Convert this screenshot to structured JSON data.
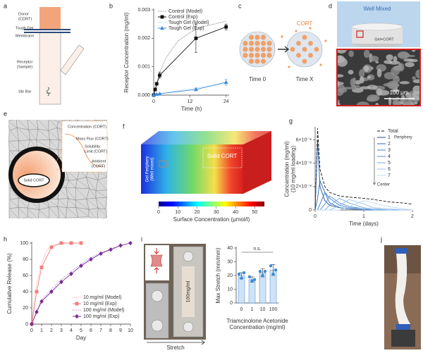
{
  "panel_labels": [
    "a",
    "b",
    "c",
    "d",
    "e",
    "f",
    "g",
    "h",
    "i",
    "j"
  ],
  "panel_a": {
    "donor": [
      "Donor",
      "(CORT)"
    ],
    "membrane": [
      "Tough Gel",
      "Membrane"
    ],
    "receptor": [
      "Receptor",
      "(Sample)"
    ],
    "stir_bar": "Stir Bar"
  },
  "panel_c": {
    "cort": "CORT",
    "time_0": "Time 0",
    "time_x": "Time X"
  },
  "panel_d": {
    "well": "Well Mixed",
    "gel": "Gel+CORT",
    "scale": "100 μm"
  },
  "panel_e": {
    "concentration": "Concentration (CORT)",
    "mass_flux": "Mass Flux (CORT)",
    "solubility": [
      "Solubility",
      "Limit (CORT)"
    ],
    "ambient": [
      "Ambient",
      "(CORT)"
    ],
    "solid": "Solid CORT"
  },
  "panel_f": {
    "periphery": [
      "Gel Periphery",
      "(Well mixed)"
    ],
    "solid": "Solid CORT",
    "colorbar_lim": [
      0,
      55
    ],
    "colorbar_ticks": [
      0,
      10,
      20,
      30,
      40,
      50
    ],
    "colorbar_label": "Surface Concentration (μmol/l)"
  },
  "panel_i": {
    "sample": "100mg/ml",
    "stretch": "Stretch"
  },
  "chart_data": [
    {
      "type": "line",
      "x_label": "Time (h)",
      "y_label": "Receptor Concentration (mg/ml)",
      "xlim": [
        0,
        25
      ],
      "xticks": [
        0,
        12,
        24
      ],
      "ylim": [
        0,
        0.003
      ],
      "yticks": [
        {
          "value": 0,
          "label": "0.000"
        },
        0.001,
        0.002,
        0.003
      ],
      "legend": "upper left",
      "series": [
        {
          "name": "Control (Model)",
          "color": "#7a7a7a",
          "style": "dotted",
          "x": [
            0,
            1,
            2,
            4,
            6,
            8,
            12,
            16,
            20,
            24
          ],
          "values": [
            0,
            0.0004,
            0.0008,
            0.0013,
            0.0016,
            0.0019,
            0.0022,
            0.0024,
            0.0025,
            0.0026
          ]
        },
        {
          "name": "Control (Exp)",
          "color": "#111111",
          "style": "solid",
          "marker": "square",
          "x": [
            0,
            0.5,
            1,
            2,
            14,
            24
          ],
          "values": [
            0,
            0.0002,
            0.0004,
            0.0007,
            0.002,
            0.0024
          ],
          "errors": [
            0,
            5e-05,
            5e-05,
            0.0001,
            0.0005,
            0.0001
          ]
        },
        {
          "name": "Tough Gel (Model)",
          "color": "#9ccbee",
          "style": "dotted",
          "x": [
            0,
            2,
            4,
            8,
            12,
            16,
            20,
            24
          ],
          "values": [
            0,
            4e-05,
            8e-05,
            0.00016,
            0.00022,
            0.00028,
            0.00034,
            0.0004
          ]
        },
        {
          "name": "Tough Gel (Exp)",
          "color": "#3b8ad9",
          "style": "solid",
          "marker": "triangle",
          "x": [
            0,
            1,
            2,
            14,
            24
          ],
          "values": [
            0,
            3e-05,
            5e-05,
            0.0002,
            0.00045
          ],
          "errors": [
            0,
            1e-05,
            1e-05,
            5e-05,
            0.0001
          ]
        }
      ]
    },
    {
      "type": "line",
      "x_label": "Time (days)",
      "y_label": [
        "Concentration  (mg/ml)",
        "(10 mg/ml loading)"
      ],
      "xlim": [
        0,
        2
      ],
      "xticks": [
        0,
        1,
        2
      ],
      "ylim": [
        0,
        7e-08
      ],
      "yticks": [
        0,
        {
          "value": 2e-08,
          "label": "2×10⁻⁸"
        },
        {
          "value": 4e-08,
          "label": "4×10⁻⁸"
        },
        {
          "value": 6e-08,
          "label": "6×10⁻⁸"
        }
      ],
      "legend": "upper right",
      "annotations": {
        "periphery": "Periphery",
        "center": "Center"
      },
      "x": [
        0,
        0.05,
        0.1,
        0.2,
        0.3,
        0.5,
        0.7,
        1,
        1.2,
        1.5,
        1.8,
        2
      ],
      "series": [
        {
          "name": "Total",
          "color": "#111111",
          "style": "dashed",
          "values": [
            0,
            7e-08,
            3.5e-08,
            2e-08,
            1.5e-08,
            1.2e-08,
            1.1e-08,
            1e-08,
            9e-09,
            7e-09,
            6e-09,
            5e-09
          ]
        },
        {
          "name": "1",
          "color": "#1f4e96",
          "style": "solid",
          "values": [
            0,
            6e-08,
            2e-08,
            8e-09,
            4e-09,
            2e-09,
            1e-09,
            0,
            0,
            0,
            0,
            0
          ]
        },
        {
          "name": "2",
          "color": "#2a64b3",
          "style": "solid",
          "values": [
            0,
            1e-08,
            2.5e-08,
            1.5e-08,
            6e-09,
            2e-09,
            1e-09,
            0,
            0,
            0,
            0,
            0
          ]
        },
        {
          "name": "3",
          "color": "#3b7cc9",
          "style": "solid",
          "values": [
            0,
            0,
            5e-09,
            1.5e-08,
            1e-08,
            4e-09,
            2e-09,
            1e-09,
            0,
            0,
            0,
            0
          ]
        },
        {
          "name": "4",
          "color": "#5593d6",
          "style": "solid",
          "values": [
            0,
            0,
            0,
            5e-09,
            1.2e-08,
            6e-09,
            3e-09,
            1e-09,
            0,
            0,
            0,
            0
          ]
        },
        {
          "name": "5",
          "color": "#74aae0",
          "style": "solid",
          "values": [
            0,
            0,
            0,
            0,
            4e-09,
            1e-08,
            6e-09,
            2e-09,
            1e-09,
            0,
            0,
            0
          ]
        },
        {
          "name": "6",
          "color": "#98c2ea",
          "style": "solid",
          "values": [
            0,
            0,
            0,
            0,
            0,
            4e-09,
            9e-09,
            5e-09,
            2e-09,
            1e-09,
            0,
            0
          ]
        },
        {
          "name": "7",
          "color": "#bcd8f2",
          "style": "solid",
          "values": [
            0,
            0,
            0,
            0,
            0,
            0,
            3e-09,
            8e-09,
            6e-09,
            3e-09,
            1e-09,
            0
          ]
        }
      ]
    },
    {
      "type": "line",
      "x_label": "Day",
      "y_label": "Cumulative Release (%)",
      "xlim": [
        0,
        10
      ],
      "xticks": [
        0,
        1,
        2,
        3,
        4,
        5,
        6,
        7,
        8,
        9,
        10
      ],
      "ylim": [
        0,
        100
      ],
      "yticks": [
        0,
        20,
        40,
        60,
        80,
        100
      ],
      "legend": "lower right",
      "series": [
        {
          "name": "10 mg/ml (Model)",
          "color": "#f4a0a0",
          "style": "dotted",
          "x": [
            0,
            0.25,
            0.5,
            1,
            1.5,
            2,
            3
          ],
          "values": [
            0,
            30,
            50,
            75,
            90,
            97,
            100
          ]
        },
        {
          "name": "10 mg/ml (Exp)",
          "color": "#f47e7e",
          "style": "solid",
          "marker": "square",
          "x": [
            0,
            0.5,
            1,
            2,
            3,
            4,
            5
          ],
          "values": [
            0,
            40,
            70,
            95,
            100,
            100,
            100
          ]
        },
        {
          "name": "100 mg/ml (Model)",
          "color": "#b07cc6",
          "style": "dotted",
          "x": [
            0,
            0.5,
            1,
            2,
            3,
            4,
            5,
            6,
            7,
            8,
            9,
            10
          ],
          "values": [
            0,
            17,
            30,
            43,
            55,
            65,
            74,
            82,
            88,
            93,
            97,
            100
          ]
        },
        {
          "name": "100 mg/ml (Exp)",
          "color": "#7a2a96",
          "style": "solid",
          "marker": "diamond",
          "x": [
            0,
            0.5,
            1,
            2,
            3,
            4,
            5,
            6,
            7,
            8,
            9,
            10
          ],
          "values": [
            0,
            15,
            28,
            40,
            52,
            62,
            72,
            80,
            87,
            92,
            97,
            100
          ]
        }
      ]
    },
    {
      "type": "bar",
      "x_label": [
        "Triamcinolone Acetonide",
        "Concentration (mg/ml)"
      ],
      "y_label": "Max Stretch (mm/mm)",
      "categories": [
        "0",
        "1",
        "10",
        "100"
      ],
      "values": [
        20,
        17,
        22,
        24
      ],
      "errors": [
        2,
        2,
        3,
        4
      ],
      "points": [
        [
          21,
          18,
          22
        ],
        [
          19,
          16,
          17
        ],
        [
          23,
          20,
          23
        ],
        [
          27,
          21,
          24
        ]
      ],
      "color": "#cfe3f6",
      "point_color": "#3b8ad9",
      "ylim": [
        0,
        40
      ],
      "yticks": [
        0,
        10,
        20,
        30,
        40
      ],
      "annotations": {
        "significance": "n.s."
      }
    }
  ]
}
